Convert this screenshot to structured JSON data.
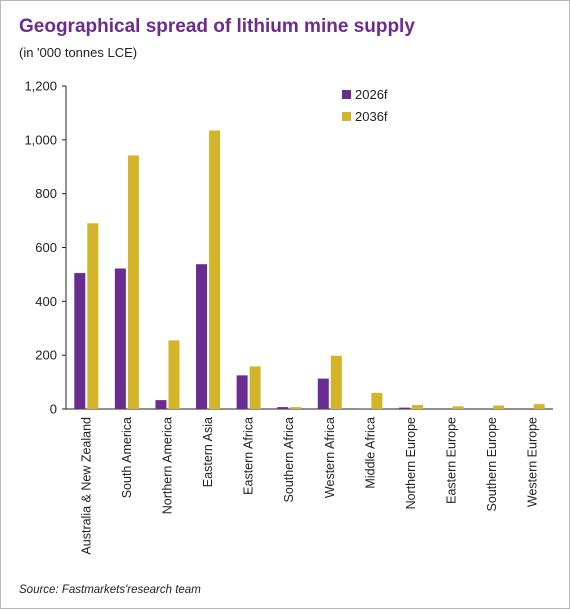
{
  "header": {
    "title": "Geographical spread of lithium mine supply",
    "subtitle": "(in '000 tonnes LCE)"
  },
  "footer": {
    "source": "Source: Fastmarkets'research team"
  },
  "chart_data": {
    "type": "bar",
    "title": "Geographical spread of lithium mine supply",
    "subtitle": "(in '000 tonnes LCE)",
    "xlabel": "",
    "ylabel": "",
    "ylim": [
      0,
      1200
    ],
    "yticks": [
      0,
      200,
      400,
      600,
      800,
      1000,
      1200
    ],
    "ytick_labels": [
      "0",
      "200",
      "400",
      "600",
      "800",
      "1,000",
      "1,200"
    ],
    "grid": false,
    "legend_position": "top-right",
    "categories": [
      "Australia & New Zealand",
      "South America",
      "Northern America",
      "Eastern Asia",
      "Eastern Africa",
      "Southern Africa",
      "Western Africa",
      "Middle Africa",
      "Northern Europe",
      "Eastern Europe",
      "Southern Europe",
      "Western Europe"
    ],
    "series": [
      {
        "name": "2026f",
        "color": "#6b2c91",
        "values": [
          505,
          522,
          33,
          538,
          125,
          7,
          113,
          2,
          5,
          0,
          0,
          0
        ]
      },
      {
        "name": "2036f",
        "color": "#d4b52a",
        "values": [
          690,
          942,
          255,
          1035,
          158,
          7,
          198,
          60,
          15,
          10,
          13,
          18
        ]
      }
    ]
  }
}
